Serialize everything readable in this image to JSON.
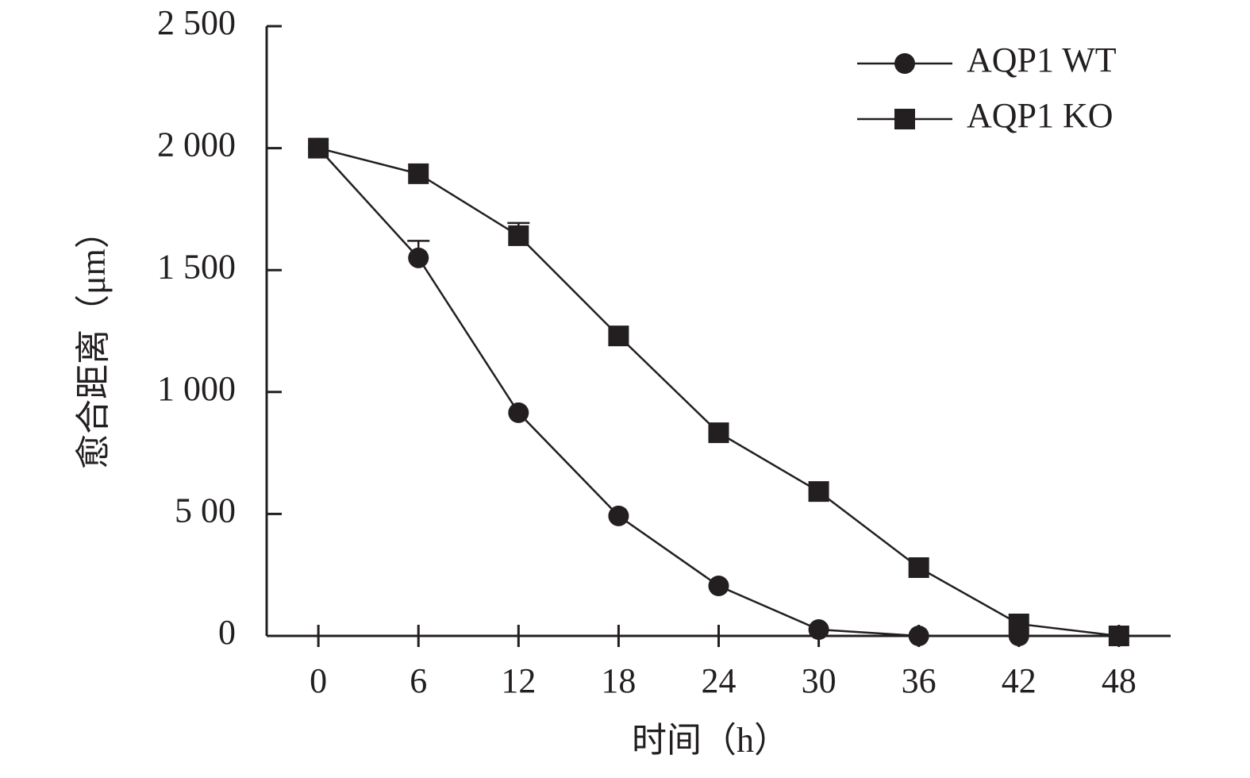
{
  "chart_data": {
    "type": "line",
    "x_label": "时间（h）",
    "y_label": "愈合距离（μm）",
    "x": [
      0,
      6,
      12,
      18,
      24,
      30,
      36,
      42,
      48
    ],
    "series": [
      {
        "name": "AQP1 WT",
        "color": "#231f20",
        "marker": "circle",
        "values": [
          2000,
          1550,
          915,
          492,
          205,
          26,
          0,
          0,
          0
        ],
        "errors": [
          null,
          70,
          null,
          null,
          null,
          null,
          null,
          null,
          null
        ]
      },
      {
        "name": "AQP1 KO",
        "color": "#231f20",
        "marker": "square",
        "values": [
          2000,
          1895,
          1641,
          1230,
          833,
          592,
          280,
          49,
          0
        ],
        "errors": [
          null,
          null,
          52,
          null,
          null,
          null,
          null,
          null,
          null
        ]
      }
    ],
    "xlim": [
      -3.1,
      51.1
    ],
    "xticks": [
      0,
      6,
      12,
      18,
      24,
      30,
      36,
      42,
      48
    ],
    "ylim": [
      0,
      2500
    ],
    "yticks": [
      0,
      {
        "value": 500,
        "label": "5 00"
      },
      {
        "value": 1000,
        "label": "1 000"
      },
      {
        "value": 1500,
        "label": "1 500"
      },
      {
        "value": 2000,
        "label": "2 000"
      },
      {
        "value": 2500,
        "label": "2 500"
      }
    ],
    "legend": "top-right",
    "grid": false
  }
}
